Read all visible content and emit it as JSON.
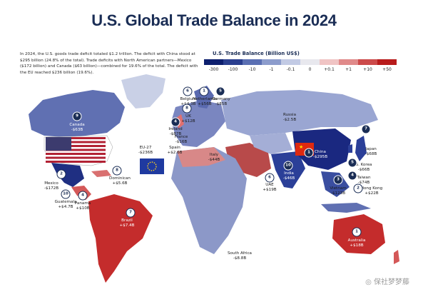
{
  "title": "U.S. Global Trade Balance in 2024",
  "intro": "In 2024, the U.S. goods trade deficit totaled $1.2 trillion. The deficit with China stood at $295 billion (24.8% of the total). Trade deficits with North American partners—Mexico ($172 billion) and Canada ($63 billion)—combined for 19.6% of the total. The deficit with the EU reached $236 billion (19.6%).",
  "legend": {
    "title": "U.S. Trade Balance (Billion US$)",
    "ticks": [
      "-300",
      "-100",
      "-10",
      "-1",
      "-0.1",
      "0",
      "+0.1",
      "+1",
      "+10",
      "+50"
    ],
    "colors": [
      "#0d1f6e",
      "#2a3f8f",
      "#5a6fb3",
      "#8c9ccc",
      "#c2cae4",
      "#e8e8ee",
      "#f0c4c4",
      "#e08a8a",
      "#cc4a4a",
      "#b81c1c"
    ]
  },
  "countries": [
    {
      "name": "Canada",
      "value": "-$63B",
      "num": "9"
    },
    {
      "name": "Mexico",
      "value": "-$172B",
      "num": "2"
    },
    {
      "name": "Guatemala",
      "value": "+$4.7B",
      "num": "10"
    },
    {
      "name": "Panama",
      "value": "+$10B",
      "num": "4"
    },
    {
      "name": "Dominican",
      "value": "+$5.6B",
      "num": "8"
    },
    {
      "name": "Brazil",
      "value": "+$7.4B",
      "num": "7"
    },
    {
      "name": "EU-27",
      "value": "-$236B",
      "num": ""
    },
    {
      "name": "Ireland",
      "value": "-$87B",
      "num": "4"
    },
    {
      "name": "UK",
      "value": "+$12B",
      "num": "8"
    },
    {
      "name": "Belgium",
      "value": "+$4.3B",
      "num": "6"
    },
    {
      "name": "Netherlands",
      "value": "+$56B",
      "num": "1"
    },
    {
      "name": "Germany",
      "value": "-$85B",
      "num": "5"
    },
    {
      "name": "France",
      "value": "-$16B",
      "num": ""
    },
    {
      "name": "Spain",
      "value": "+$2.6B",
      "num": ""
    },
    {
      "name": "Italy",
      "value": "-$44B",
      "num": ""
    },
    {
      "name": "Russia",
      "value": "-$2.5B",
      "num": ""
    },
    {
      "name": "India",
      "value": "-$46B",
      "num": "10"
    },
    {
      "name": "UAE",
      "value": "+$19B",
      "num": "6"
    },
    {
      "name": "China",
      "value": "-$295B",
      "num": "1"
    },
    {
      "name": "Japan",
      "value": "-$68B",
      "num": "7"
    },
    {
      "name": "S. Korea",
      "value": "-$66B",
      "num": "5"
    },
    {
      "name": "Taiwan",
      "value": "-$74B",
      "num": "4"
    },
    {
      "name": "Vietnam",
      "value": "-$123B",
      "num": "3"
    },
    {
      "name": "Hong Kong",
      "value": "+$22B",
      "num": "2"
    },
    {
      "name": "Australia",
      "value": "+$18B",
      "num": "1"
    },
    {
      "name": "South Africa",
      "value": "-$8.8B",
      "num": ""
    }
  ],
  "watermark": "◎ 保社梦梦藤"
}
